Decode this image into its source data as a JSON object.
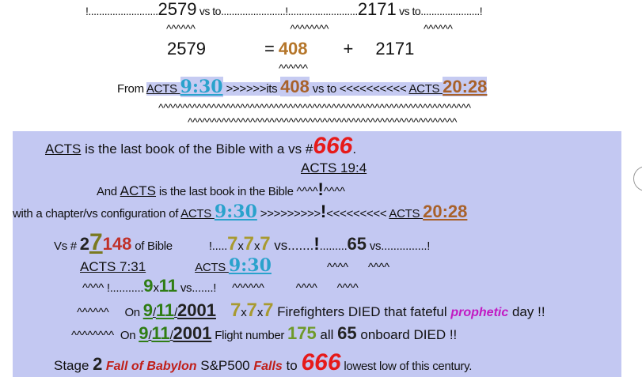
{
  "lines": [
    [
      "!..........................",
      "2579",
      " vs to........................!..........................",
      "2171",
      " vs to......................!"
    ],
    [
      "^^^^^^",
      "^^^^^^^^",
      "^^^^^^"
    ],
    [
      "2579",
      "=",
      "408",
      "+",
      "2171"
    ],
    [
      "^^^^^^"
    ],
    [
      "From ",
      "ACTS ",
      "9:30",
      " >>>>>>its ",
      "408",
      " vs to <<<<<<<<<< ",
      "ACTS ",
      "20:28"
    ],
    [
      "^^^^^^^^^^^^^^^^^^^^^^^^^^^^^^^^^^^^^^^^^^^^^^^^^^^^^^^^^^^^^^^^^"
    ],
    [
      "^^^^^^^^^^^^^^^^^^^^^^^^^^^^^^^^^^^^^^^^^^^^^^^^^^^^^^^^"
    ],
    [
      "ACTS",
      " is the last book of the Bible with a vs #",
      "666",
      "."
    ],
    [
      "ACTS 19:4"
    ],
    [
      "And ",
      "ACTS",
      " is the last book in the Bible ^^^^",
      "!",
      "^^^^"
    ],
    [
      "with a chapter/vs configuration of ",
      "ACTS ",
      "9:30",
      " >>>>>>>>>",
      "!",
      "<<<<<<<<< ",
      "ACTS ",
      "20:28"
    ],
    [
      "Vs # ",
      "2",
      "7",
      "148",
      " of Bible",
      "!.....",
      "7",
      "x",
      "7",
      "x",
      "7",
      " vs.......",
      "!",
      ".........",
      "65",
      " vs...............!"
    ],
    [
      "ACTS 7:31",
      "ACTS ",
      "9:30",
      "^^^^",
      "^^^^"
    ],
    [
      "^^^^ !...........",
      "9",
      "x",
      "11",
      " vs.......!",
      "^^^^^^",
      "^^^^",
      "^^^^"
    ],
    [
      "^^^^^^",
      "On ",
      "9",
      "/",
      "11",
      "/",
      "2001",
      "7",
      "x",
      "7",
      "x",
      "7",
      " Firefighters DIED that fateful ",
      "prophetic",
      " day !!"
    ],
    [
      "^^^^^^^^",
      "On ",
      "9",
      "/",
      "11",
      "/",
      "2001",
      " Flight number ",
      "175",
      " all ",
      "65",
      " onboard DIED !!"
    ],
    [
      "Stage ",
      "2",
      " Fall of Babylon",
      " S&P500 ",
      "Falls",
      " to ",
      "666",
      " lowest low of this century."
    ]
  ]
}
